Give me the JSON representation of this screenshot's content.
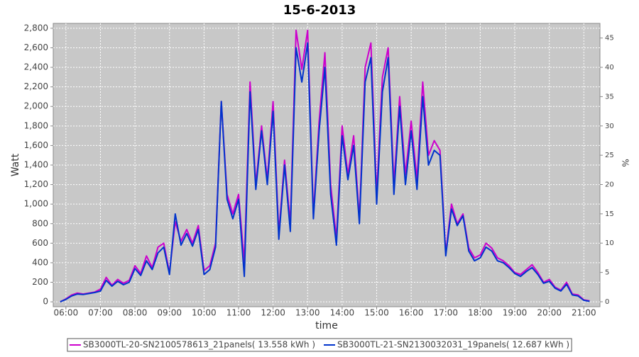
{
  "chart_data": {
    "type": "line",
    "title": "15-6-2013",
    "x_label": "time",
    "y_label": "Watt",
    "y2_label": "%",
    "x": [
      "05:50",
      "06:00",
      "06:10",
      "06:20",
      "06:30",
      "06:40",
      "06:50",
      "07:00",
      "07:10",
      "07:20",
      "07:30",
      "07:40",
      "07:50",
      "08:00",
      "08:10",
      "08:20",
      "08:30",
      "08:40",
      "08:50",
      "09:00",
      "09:10",
      "09:20",
      "09:30",
      "09:40",
      "09:50",
      "10:00",
      "10:10",
      "10:20",
      "10:30",
      "10:40",
      "10:50",
      "11:00",
      "11:10",
      "11:20",
      "11:30",
      "11:40",
      "11:50",
      "12:00",
      "12:10",
      "12:20",
      "12:30",
      "12:40",
      "12:50",
      "13:00",
      "13:10",
      "13:20",
      "13:30",
      "13:40",
      "13:50",
      "14:00",
      "14:10",
      "14:20",
      "14:30",
      "14:40",
      "14:50",
      "15:00",
      "15:10",
      "15:20",
      "15:30",
      "15:40",
      "15:50",
      "16:00",
      "16:10",
      "16:20",
      "16:30",
      "16:40",
      "16:50",
      "17:00",
      "17:10",
      "17:20",
      "17:30",
      "17:40",
      "17:50",
      "18:00",
      "18:10",
      "18:20",
      "18:30",
      "18:40",
      "18:50",
      "19:00",
      "19:10",
      "19:20",
      "19:30",
      "19:40",
      "19:50",
      "20:00",
      "20:10",
      "20:20",
      "20:30",
      "20:40",
      "20:50",
      "21:00",
      "21:10"
    ],
    "series": [
      {
        "name": "SB3000TL-20-SN2100578613_21panels( 13.558 kWh )",
        "color": "#cc00cc",
        "values": [
          0,
          30,
          70,
          90,
          80,
          90,
          100,
          130,
          250,
          170,
          230,
          190,
          220,
          370,
          290,
          470,
          350,
          560,
          600,
          300,
          820,
          620,
          740,
          600,
          780,
          320,
          370,
          600,
          2050,
          1100,
          900,
          1100,
          400,
          2250,
          1200,
          1800,
          1250,
          2050,
          700,
          1450,
          800,
          2780,
          2380,
          2780,
          900,
          1850,
          2550,
          1200,
          650,
          1800,
          1300,
          1700,
          850,
          2400,
          2650,
          1100,
          2300,
          2600,
          1200,
          2100,
          1300,
          1850,
          1250,
          2250,
          1500,
          1650,
          1550,
          500,
          1000,
          800,
          900,
          550,
          450,
          480,
          600,
          550,
          450,
          420,
          370,
          300,
          280,
          330,
          380,
          300,
          200,
          230,
          150,
          120,
          200,
          80,
          70,
          20,
          10
        ]
      },
      {
        "name": "SB3000TL-21-SN2130032031_19panels( 12.687 kWh )",
        "color": "#0033cc",
        "values": [
          0,
          25,
          60,
          80,
          75,
          85,
          95,
          110,
          220,
          160,
          210,
          175,
          200,
          340,
          270,
          420,
          330,
          500,
          560,
          280,
          900,
          580,
          700,
          570,
          740,
          280,
          330,
          560,
          2050,
          1050,
          850,
          1050,
          260,
          2150,
          1150,
          1750,
          1200,
          1950,
          640,
          1400,
          720,
          2600,
          2250,
          2650,
          850,
          1750,
          2400,
          1100,
          580,
          1700,
          1250,
          1600,
          800,
          2250,
          2500,
          1000,
          2150,
          2500,
          1100,
          2000,
          1200,
          1750,
          1150,
          2100,
          1400,
          1550,
          1500,
          470,
          950,
          780,
          880,
          520,
          420,
          450,
          560,
          520,
          420,
          400,
          350,
          290,
          260,
          310,
          350,
          280,
          190,
          210,
          140,
          110,
          180,
          70,
          60,
          15,
          5
        ]
      }
    ],
    "xlim": [
      "05:38",
      "21:28"
    ],
    "xticks": [
      "06:00",
      "07:00",
      "08:00",
      "09:00",
      "10:00",
      "11:00",
      "12:00",
      "13:00",
      "14:00",
      "15:00",
      "16:00",
      "17:00",
      "18:00",
      "19:00",
      "20:00",
      "21:00"
    ],
    "ylim": [
      -50,
      2850
    ],
    "yticks": [
      0,
      200,
      400,
      600,
      800,
      {
        "value": 1000,
        "label": "1,000"
      },
      {
        "value": 1200,
        "label": "1,200"
      },
      {
        "value": 1400,
        "label": "1,400"
      },
      {
        "value": 1600,
        "label": "1,600"
      },
      {
        "value": 1800,
        "label": "1,800"
      },
      {
        "value": 2000,
        "label": "2,000"
      },
      {
        "value": 2200,
        "label": "2,200"
      },
      {
        "value": 2400,
        "label": "2,400"
      },
      {
        "value": 2600,
        "label": "2,600"
      },
      {
        "value": 2800,
        "label": "2,800"
      }
    ],
    "y2lim": [
      -0.85,
      47.5
    ],
    "y2ticks": [
      0,
      5,
      10,
      15,
      20,
      25,
      30,
      35,
      40,
      45
    ],
    "grid": true,
    "legend": "bottom",
    "plot_background": "#c8c8c8"
  }
}
